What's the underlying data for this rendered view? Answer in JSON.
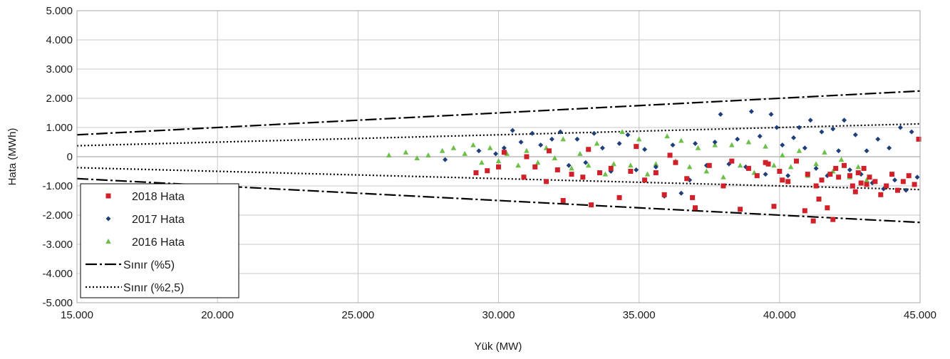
{
  "chart_data": {
    "type": "scatter",
    "xlabel": "Yük (MW)",
    "ylabel": "Hata (MWh)",
    "xlim": [
      15000,
      45000
    ],
    "ylim": [
      -5000,
      5000
    ],
    "x_ticks": [
      15000,
      20000,
      25000,
      30000,
      35000,
      40000,
      45000
    ],
    "x_tick_labels": [
      "15.000",
      "20.000",
      "25.000",
      "30.000",
      "35.000",
      "40.000",
      "45.000"
    ],
    "y_ticks": [
      5000,
      4000,
      3000,
      2000,
      1000,
      0,
      -1000,
      -2000,
      -3000,
      -4000,
      -5000
    ],
    "y_tick_labels": [
      "5.000",
      "4.000",
      "3.000",
      "2.000",
      "1.000",
      "0",
      "-1.000",
      "-2.000",
      "-3.000",
      "-4.000",
      "-5.000"
    ],
    "grid": true,
    "legend_placement": "bottom-left",
    "series": [
      {
        "name": "2018 Hata",
        "marker": "square",
        "color": "#d0202a",
        "points": [
          [
            29200,
            -550
          ],
          [
            29600,
            -480
          ],
          [
            30000,
            -350
          ],
          [
            30900,
            -700
          ],
          [
            31300,
            -350
          ],
          [
            31700,
            -850
          ],
          [
            32100,
            -450
          ],
          [
            32300,
            -1500
          ],
          [
            32600,
            -600
          ],
          [
            33000,
            -700
          ],
          [
            33300,
            -1650
          ],
          [
            33600,
            -550
          ],
          [
            34000,
            -400
          ],
          [
            34300,
            -1400
          ],
          [
            34700,
            -500
          ],
          [
            35200,
            -800
          ],
          [
            35600,
            -550
          ],
          [
            35900,
            -1300
          ],
          [
            36300,
            -200
          ],
          [
            36700,
            -750
          ],
          [
            36900,
            -1400
          ],
          [
            37000,
            -1750
          ],
          [
            37500,
            -300
          ],
          [
            38000,
            -1000
          ],
          [
            38300,
            -150
          ],
          [
            38600,
            -1800
          ],
          [
            38900,
            -400
          ],
          [
            39200,
            -650
          ],
          [
            39600,
            -250
          ],
          [
            39800,
            -1700
          ],
          [
            40100,
            -800
          ],
          [
            40300,
            -850
          ],
          [
            40600,
            -150
          ],
          [
            40900,
            -1850
          ],
          [
            41000,
            -600
          ],
          [
            41200,
            -2200
          ],
          [
            41300,
            -1000
          ],
          [
            41400,
            -1450
          ],
          [
            41500,
            -800
          ],
          [
            41700,
            -1750
          ],
          [
            41800,
            -600
          ],
          [
            41900,
            -2150
          ],
          [
            42000,
            -400
          ],
          [
            42100,
            -700
          ],
          [
            42300,
            -300
          ],
          [
            42500,
            -650
          ],
          [
            42600,
            -1000
          ],
          [
            42700,
            -1200
          ],
          [
            42800,
            -550
          ],
          [
            42900,
            -900
          ],
          [
            43000,
            -400
          ],
          [
            43100,
            -950
          ],
          [
            43200,
            -700
          ],
          [
            43400,
            -850
          ],
          [
            43600,
            -1300
          ],
          [
            43800,
            -1000
          ],
          [
            44000,
            -600
          ],
          [
            44200,
            -1150
          ],
          [
            44400,
            -850
          ],
          [
            44600,
            -650
          ],
          [
            44800,
            -950
          ],
          [
            44950,
            600
          ],
          [
            30200,
            150
          ],
          [
            31000,
            0
          ],
          [
            31800,
            200
          ],
          [
            33200,
            250
          ],
          [
            34900,
            350
          ],
          [
            36100,
            50
          ],
          [
            39500,
            -200
          ],
          [
            40000,
            -500
          ]
        ]
      },
      {
        "name": "2017 Hata",
        "marker": "diamond",
        "color": "#1f3f7a",
        "points": [
          [
            28100,
            -100
          ],
          [
            29300,
            200
          ],
          [
            29900,
            100
          ],
          [
            30200,
            300
          ],
          [
            30500,
            900
          ],
          [
            30800,
            500
          ],
          [
            31200,
            800
          ],
          [
            31500,
            400
          ],
          [
            31900,
            600
          ],
          [
            32200,
            850
          ],
          [
            32500,
            -300
          ],
          [
            32800,
            600
          ],
          [
            33100,
            -200
          ],
          [
            33400,
            800
          ],
          [
            33700,
            300
          ],
          [
            34000,
            -500
          ],
          [
            34300,
            450
          ],
          [
            34600,
            750
          ],
          [
            34900,
            -450
          ],
          [
            35200,
            250
          ],
          [
            35600,
            -350
          ],
          [
            35900,
            -1350
          ],
          [
            36200,
            400
          ],
          [
            36500,
            -1250
          ],
          [
            36800,
            -800
          ],
          [
            37000,
            450
          ],
          [
            37400,
            -300
          ],
          [
            37700,
            500
          ],
          [
            37900,
            1450
          ],
          [
            38200,
            -250
          ],
          [
            38500,
            600
          ],
          [
            38800,
            -350
          ],
          [
            39000,
            1550
          ],
          [
            39300,
            700
          ],
          [
            39500,
            -600
          ],
          [
            39700,
            1450
          ],
          [
            39900,
            1000
          ],
          [
            40100,
            400
          ],
          [
            40300,
            -650
          ],
          [
            40500,
            650
          ],
          [
            40700,
            1000
          ],
          [
            40900,
            300
          ],
          [
            41100,
            1250
          ],
          [
            41300,
            -400
          ],
          [
            41500,
            850
          ],
          [
            41700,
            -650
          ],
          [
            41900,
            950
          ],
          [
            42100,
            200
          ],
          [
            42300,
            1250
          ],
          [
            42500,
            -450
          ],
          [
            42700,
            750
          ],
          [
            42900,
            -600
          ],
          [
            43100,
            200
          ],
          [
            43300,
            -900
          ],
          [
            43500,
            600
          ],
          [
            43700,
            -1100
          ],
          [
            43900,
            300
          ],
          [
            44100,
            -800
          ],
          [
            44300,
            1000
          ],
          [
            44500,
            -1150
          ],
          [
            44700,
            850
          ],
          [
            44900,
            -700
          ]
        ]
      },
      {
        "name": "2016 Hata",
        "marker": "triangle",
        "color": "#6cc04a",
        "points": [
          [
            26100,
            50
          ],
          [
            26700,
            150
          ],
          [
            27100,
            -50
          ],
          [
            27500,
            50
          ],
          [
            28000,
            200
          ],
          [
            28400,
            300
          ],
          [
            28800,
            100
          ],
          [
            29100,
            400
          ],
          [
            29400,
            -200
          ],
          [
            29700,
            300
          ],
          [
            30000,
            -150
          ],
          [
            30300,
            100
          ],
          [
            30700,
            -300
          ],
          [
            31000,
            200
          ],
          [
            31400,
            -200
          ],
          [
            31700,
            300
          ],
          [
            32000,
            -50
          ],
          [
            32300,
            600
          ],
          [
            32600,
            -400
          ],
          [
            32900,
            100
          ],
          [
            33200,
            -300
          ],
          [
            33500,
            450
          ],
          [
            33800,
            -600
          ],
          [
            34100,
            -250
          ],
          [
            34400,
            850
          ],
          [
            34700,
            -300
          ],
          [
            35000,
            600
          ],
          [
            35300,
            -600
          ],
          [
            35600,
            -250
          ],
          [
            36000,
            700
          ],
          [
            36300,
            -150
          ],
          [
            36500,
            550
          ],
          [
            36800,
            -350
          ],
          [
            37100,
            300
          ],
          [
            37400,
            -500
          ],
          [
            37700,
            400
          ],
          [
            38000,
            -700
          ],
          [
            38300,
            400
          ],
          [
            38600,
            -300
          ],
          [
            38900,
            500
          ],
          [
            39100,
            -550
          ],
          [
            39500,
            350
          ],
          [
            39800,
            -300
          ],
          [
            40100,
            50
          ],
          [
            40400,
            -350
          ],
          [
            40700,
            200
          ],
          [
            41000,
            -650
          ],
          [
            41300,
            -250
          ],
          [
            41600,
            150
          ],
          [
            41900,
            -500
          ],
          [
            42200,
            -100
          ],
          [
            42500,
            -700
          ],
          [
            42800,
            -350
          ],
          [
            43100,
            -800
          ]
        ]
      }
    ],
    "boundaries": [
      {
        "name": "Sınır (%5)",
        "style": "dash-dot",
        "color": "#000000",
        "percent": 5
      },
      {
        "name": "Sınır (%2,5)",
        "style": "dotted",
        "color": "#000000",
        "percent": 2.5
      }
    ]
  }
}
